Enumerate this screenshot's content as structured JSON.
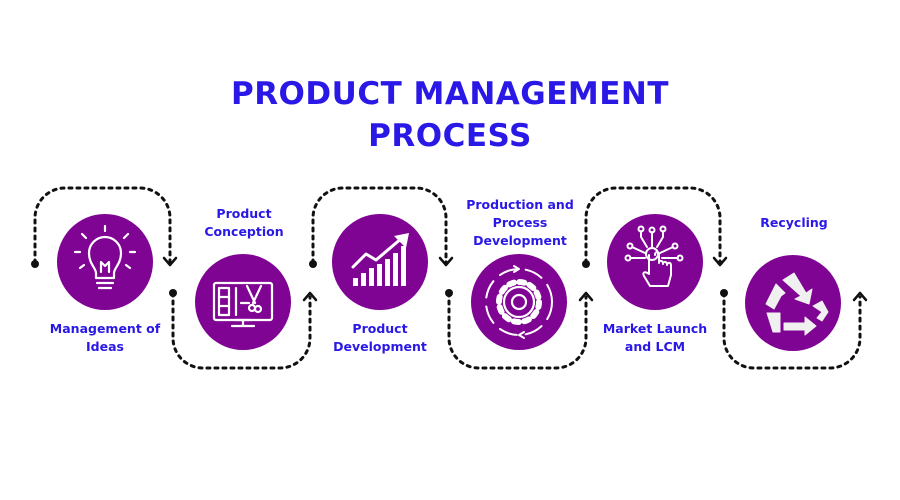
{
  "title": {
    "line1": "PRODUCT MANAGEMENT",
    "line2": "PROCESS"
  },
  "colors": {
    "title": "#2a18e6",
    "circle": "#800493",
    "connector": "#111111",
    "icon": "#ffffff"
  },
  "steps": [
    {
      "label_lines": [
        "Management of",
        "Ideas"
      ],
      "icon": "lightbulb-icon"
    },
    {
      "label_lines": [
        "Product",
        "Conception"
      ],
      "icon": "design-monitor-icon"
    },
    {
      "label_lines": [
        "Product",
        "Development"
      ],
      "icon": "growth-chart-icon"
    },
    {
      "label_lines": [
        "Production and",
        "Process",
        "Development"
      ],
      "icon": "gear-cycle-icon"
    },
    {
      "label_lines": [
        "Market Launch",
        "and LCM"
      ],
      "icon": "touch-circuit-icon"
    },
    {
      "label_lines": [
        "Recycling"
      ],
      "icon": "recycle-icon"
    }
  ]
}
